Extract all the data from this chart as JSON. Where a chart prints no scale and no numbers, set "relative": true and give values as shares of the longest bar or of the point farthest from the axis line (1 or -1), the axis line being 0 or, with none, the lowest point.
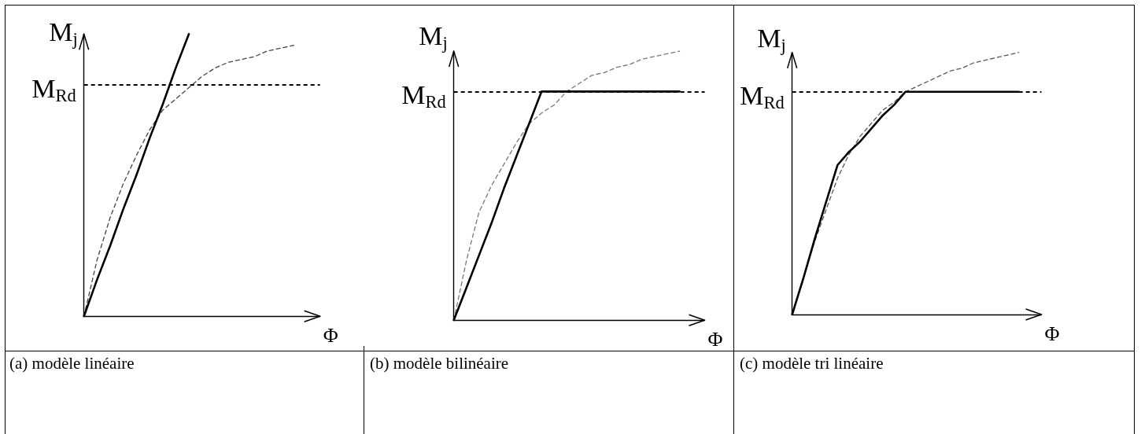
{
  "chart_data": [
    {
      "type": "line",
      "title": "(a) modèle linéaire",
      "xlabel": "Φ",
      "ylabel": "M$_{j}$",
      "relative": true,
      "marker": "none",
      "categories": [
        null,
        null,
        null,
        null,
        null,
        null,
        null,
        null,
        null,
        null,
        null,
        null,
        null,
        null,
        null,
        null,
        null,
        null,
        null
      ],
      "series": [
        {
          "color": "#444444",
          "line_style": "dashed",
          "values": [
            0,
            0.2,
            0.35,
            0.47,
            0.57,
            0.66,
            0.73,
            0.77,
            0.81,
            0.85,
            0.88,
            0.9,
            0.91,
            0.92,
            0.94,
            0.95,
            0.96,
            null,
            null
          ]
        },
        {
          "color": "#000000",
          "line_style": "solid",
          "values": [
            0,
            0.13,
            0.25,
            0.38,
            0.5,
            0.63,
            0.75,
            0.88,
            1,
            null,
            null,
            null,
            null,
            null,
            null,
            null,
            null,
            null,
            null
          ]
        }
      ],
      "ref_lines": [
        {
          "axis": "y",
          "value": 0.82,
          "label": "M$_{Rd}$",
          "color": "#000000",
          "line_style": "dashed"
        }
      ]
    },
    {
      "type": "line",
      "title": "(b) modèle bilinéaire",
      "xlabel": "Φ",
      "ylabel": "M$_{j}$",
      "relative": true,
      "marker": "none",
      "categories": [
        null,
        null,
        null,
        null,
        null,
        null,
        null,
        null,
        null,
        null,
        null,
        null,
        null,
        null,
        null,
        null,
        null,
        null,
        null,
        null,
        null
      ],
      "series": [
        {
          "color": "#777777",
          "line_style": "dashed",
          "values": [
            0,
            0.22,
            0.4,
            0.5,
            0.58,
            0.66,
            0.73,
            0.77,
            0.8,
            0.85,
            0.88,
            0.91,
            0.92,
            0.94,
            0.95,
            0.97,
            0.98,
            0.99,
            1,
            null,
            null
          ]
        },
        {
          "color": "#000000",
          "line_style": "solid",
          "values": [
            0,
            0.12,
            0.24,
            0.36,
            0.49,
            0.61,
            0.73,
            0.85,
            0.85,
            0.85,
            0.85,
            0.85,
            0.85,
            0.85,
            0.85,
            0.85,
            0.85,
            0.85,
            0.85,
            null,
            null
          ]
        }
      ],
      "ref_lines": [
        {
          "axis": "y",
          "value": 0.85,
          "label": "M$_{Rd}$",
          "color": "#000000",
          "line_style": "dashed"
        }
      ]
    },
    {
      "type": "line",
      "title": "(c) modèle tri linéaire",
      "xlabel": "Φ",
      "ylabel": "M$_{j}$",
      "relative": true,
      "marker": "none",
      "categories": [
        null,
        null,
        null,
        null,
        null,
        null,
        null,
        null,
        null,
        null,
        null,
        null,
        null,
        null,
        null,
        null,
        null,
        null,
        null,
        null,
        null,
        null,
        null
      ],
      "series": [
        {
          "color": "#555555",
          "line_style": "dashed",
          "values": [
            0,
            0.14,
            0.28,
            0.4,
            0.52,
            0.61,
            0.68,
            0.73,
            0.78,
            0.81,
            0.85,
            0.87,
            0.89,
            0.91,
            0.93,
            0.94,
            0.96,
            0.97,
            0.98,
            0.99,
            1,
            null,
            null
          ]
        },
        {
          "color": "#000000",
          "line_style": "solid",
          "values": [
            0,
            0.14,
            0.29,
            0.43,
            0.57,
            0.62,
            0.66,
            0.71,
            0.76,
            0.8,
            0.85,
            0.85,
            0.85,
            0.85,
            0.85,
            0.85,
            0.85,
            0.85,
            0.85,
            0.85,
            0.85,
            null,
            null
          ]
        }
      ],
      "ref_lines": [
        {
          "axis": "y",
          "value": 0.85,
          "label": "M$_{Rd}$",
          "color": "#000000",
          "line_style": "dashed"
        }
      ]
    }
  ]
}
